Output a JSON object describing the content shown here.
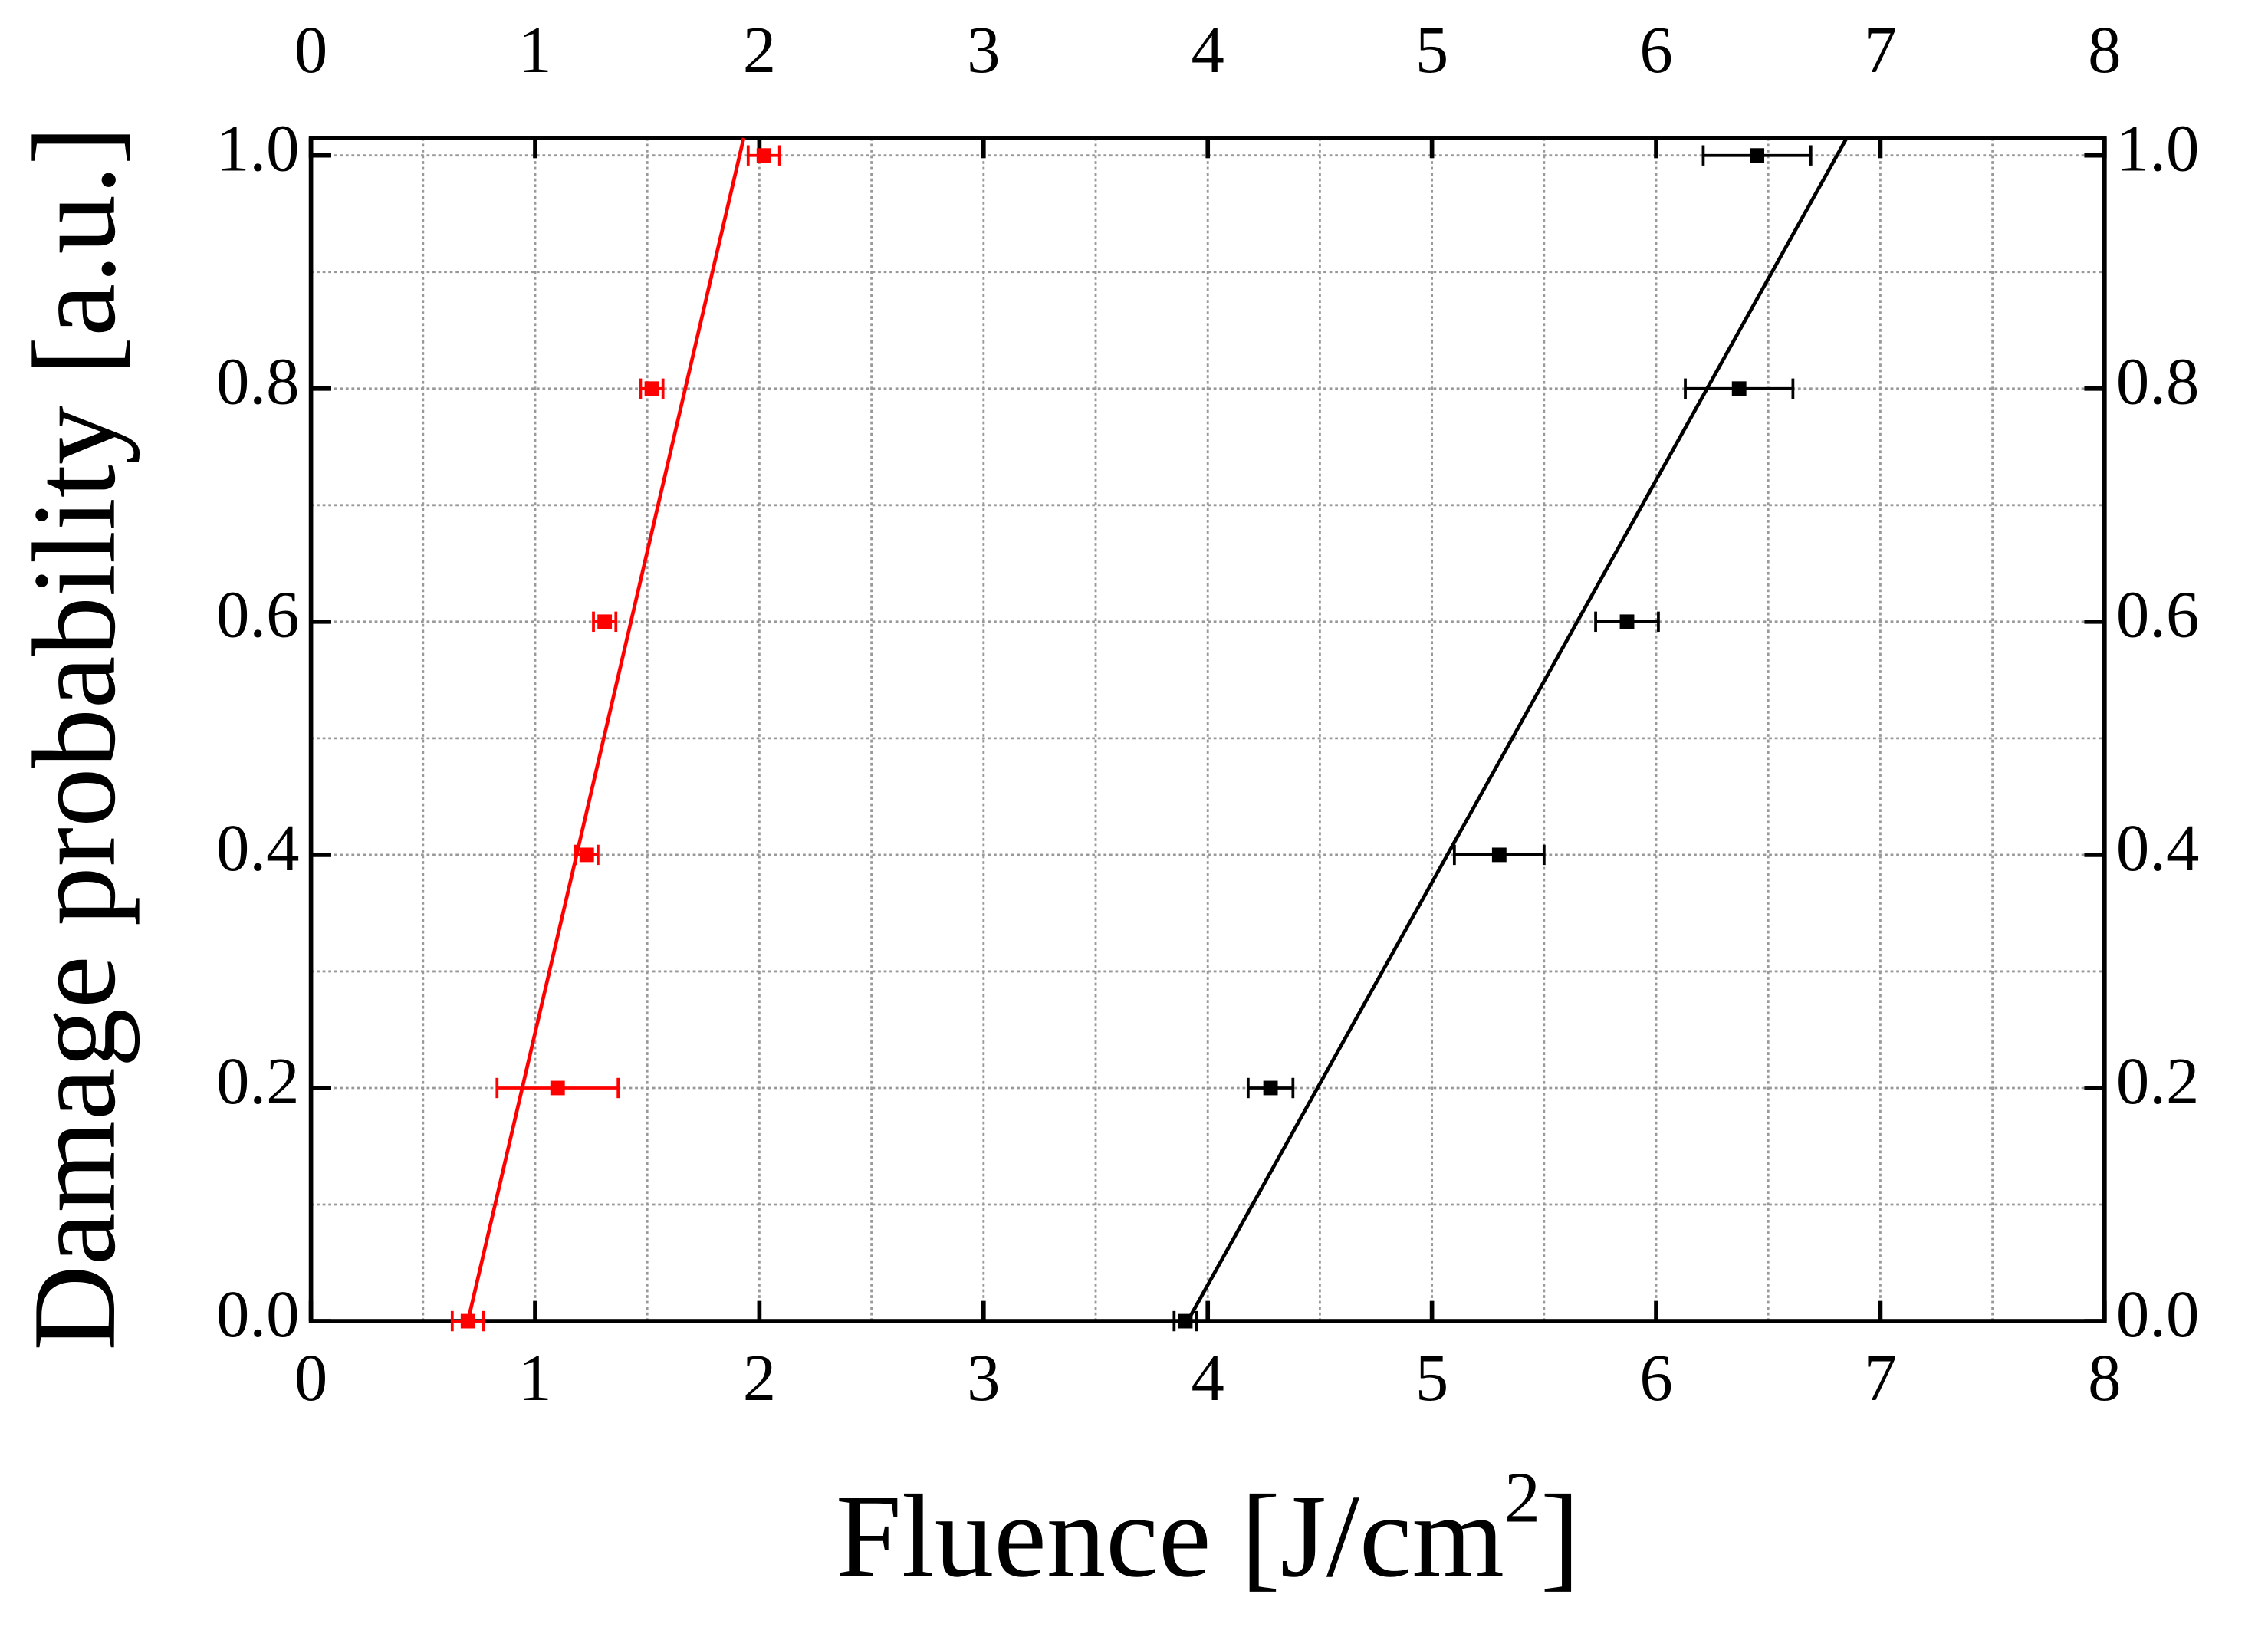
{
  "chart_data": {
    "type": "scatter",
    "xlabel": [
      "Fluence [J/cm",
      "2",
      "]"
    ],
    "ylabel": "Damage probability [a.u.]",
    "xlim": [
      0,
      8
    ],
    "ylim": [
      0,
      1.015
    ],
    "xticks": [
      0,
      1,
      2,
      3,
      4,
      5,
      6,
      7,
      8
    ],
    "yticks": [
      {
        "value": 0,
        "label": "0.0"
      },
      {
        "value": 0.2,
        "label": "0.2"
      },
      {
        "value": 0.4,
        "label": "0.4"
      },
      {
        "value": 0.6,
        "label": "0.6"
      },
      {
        "value": 0.8,
        "label": "0.8"
      },
      {
        "value": 1,
        "label": "1.0"
      }
    ],
    "grid_x": [
      0.5,
      1,
      1.5,
      2,
      2.5,
      3,
      3.5,
      4,
      4.5,
      5,
      5.5,
      6,
      6.5,
      7,
      7.5
    ],
    "grid_y": [
      0.1,
      0.2,
      0.3,
      0.4,
      0.5,
      0.6,
      0.7,
      0.8,
      0.9,
      1
    ],
    "grid": true,
    "series": [
      {
        "color": "#ff0000",
        "x": [
          0.7,
          1.1,
          1.23,
          1.31,
          1.52,
          2.02
        ],
        "y": [
          0,
          0.2,
          0.4,
          0.6,
          0.8,
          1
        ],
        "xerr": [
          0.07,
          0.27,
          0.05,
          0.05,
          0.05,
          0.07
        ]
      },
      {
        "color": "#000000",
        "x": [
          3.9,
          4.28,
          5.3,
          5.87,
          6.37,
          6.45
        ],
        "y": [
          0,
          0.2,
          0.4,
          0.6,
          0.8,
          1
        ],
        "xerr": [
          0.05,
          0.1,
          0.2,
          0.14,
          0.24,
          0.24
        ]
      }
    ],
    "fits": [
      {
        "color": "#ff0000",
        "x": [
          0.7,
          1.93
        ],
        "y": [
          0,
          1.015
        ]
      },
      {
        "color": "#000000",
        "x": [
          3.91,
          6.85
        ],
        "y": [
          0,
          1.015
        ]
      }
    ]
  }
}
